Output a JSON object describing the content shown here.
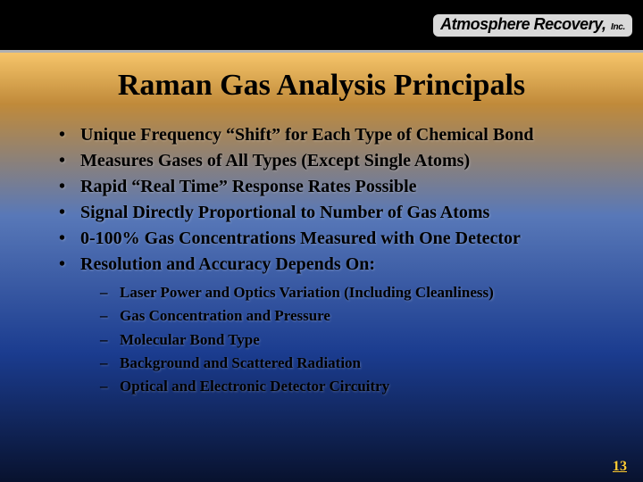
{
  "logo": {
    "line1": "Atmosphere Recovery,",
    "line2": "Inc."
  },
  "title": {
    "text": "Raman Gas Analysis Principals",
    "fontsize": 34,
    "color": "#000000"
  },
  "bullets": {
    "fontsize": 20,
    "color": "#000000",
    "items": [
      "Unique Frequency “Shift” for Each Type of Chemical Bond",
      "Measures Gases of All Types (Except Single Atoms)",
      "Rapid “Real Time” Response Rates Possible",
      "Signal Directly Proportional to Number of Gas Atoms",
      "0-100% Gas Concentrations Measured with One Detector",
      "Resolution and Accuracy Depends On:"
    ]
  },
  "sub_bullets": {
    "fontsize": 17,
    "color": "#000000",
    "items": [
      "Laser Power and Optics Variation (Including Cleanliness)",
      "Gas Concentration and Pressure",
      "Molecular Bond Type",
      "Background and Scattered Radiation",
      "Optical and Electronic Detector Circuitry"
    ]
  },
  "page_number": {
    "text": "13",
    "fontsize": 16,
    "color": "#ffcc33"
  },
  "colors": {
    "header_bg": "#000000",
    "divider": "#b0b0b0",
    "gradient_top": "#f6c56a",
    "gradient_upper_mid": "#c08a3a",
    "gradient_mid": "#5878b8",
    "gradient_lower": "#1b3c8f",
    "gradient_bottom": "#08122e"
  }
}
